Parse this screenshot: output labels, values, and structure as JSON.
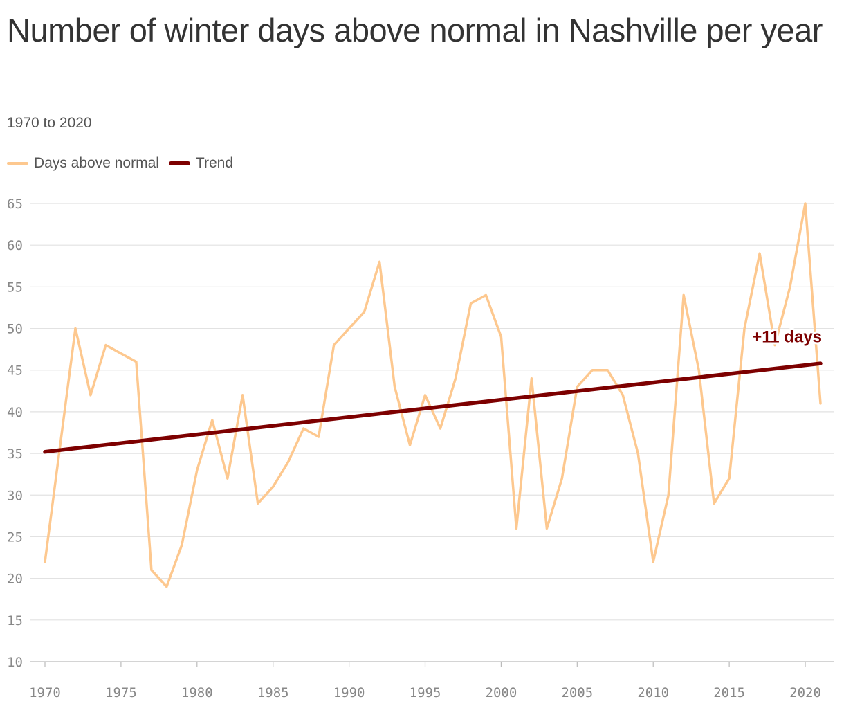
{
  "chart_data": {
    "type": "line",
    "title": "Number of winter days above normal in Nashville per year",
    "subtitle": "1970 to 2020",
    "xlabel": "",
    "ylabel": "",
    "x": [
      1970,
      1971,
      1972,
      1973,
      1974,
      1975,
      1976,
      1977,
      1978,
      1979,
      1980,
      1981,
      1982,
      1983,
      1984,
      1985,
      1986,
      1987,
      1988,
      1989,
      1990,
      1991,
      1992,
      1993,
      1994,
      1995,
      1996,
      1997,
      1998,
      1999,
      2000,
      2001,
      2002,
      2003,
      2004,
      2005,
      2006,
      2007,
      2008,
      2009,
      2010,
      2011,
      2012,
      2013,
      2014,
      2015,
      2016,
      2017,
      2018,
      2019,
      2020,
      2021
    ],
    "xlim": [
      1970,
      2021
    ],
    "ylim": [
      10,
      65
    ],
    "x_ticks": [
      "1970",
      "1975",
      "1980",
      "1985",
      "1990",
      "1995",
      "2000",
      "2005",
      "2010",
      "2015",
      "2020"
    ],
    "y_ticks": [
      "10",
      "15",
      "20",
      "25",
      "30",
      "35",
      "40",
      "45",
      "50",
      "55",
      "60",
      "65"
    ],
    "grid": true,
    "legend_position": "top-left",
    "series": [
      {
        "name": "Days above normal",
        "color": "#fdc88f",
        "values": [
          22,
          36,
          50,
          42,
          48,
          47,
          46,
          21,
          19,
          24,
          33,
          39,
          32,
          42,
          29,
          31,
          34,
          38,
          37,
          48,
          50,
          52,
          58,
          43,
          36,
          42,
          38,
          44,
          53,
          54,
          49,
          26,
          44,
          26,
          32,
          43,
          45,
          45,
          42,
          35,
          22,
          30,
          54,
          45,
          29,
          32,
          50,
          59,
          48,
          55,
          65,
          41
        ]
      },
      {
        "name": "Trend",
        "color": "#7d0000",
        "values": [
          35.2,
          45.8
        ],
        "x": [
          1970,
          2021
        ]
      }
    ],
    "annotations": [
      {
        "text": "+11 days",
        "x": 2018.8,
        "y": 49.1,
        "color": "#7d0000"
      }
    ]
  }
}
